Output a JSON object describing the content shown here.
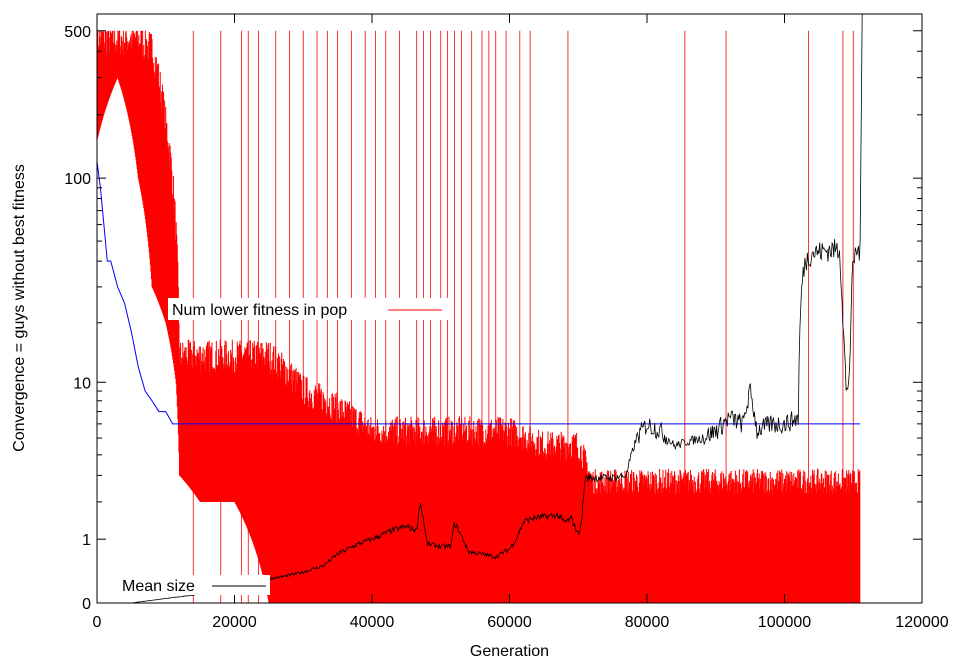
{
  "chart_data": {
    "type": "line",
    "xlabel": "Generation",
    "ylabel": "Convergence = guys without best fitness",
    "xlim": [
      0,
      120000
    ],
    "x_ticks": [
      0,
      20000,
      40000,
      60000,
      80000,
      100000,
      120000
    ],
    "x_tick_labels": [
      "0",
      "20000",
      "40000",
      "60000",
      "80000",
      "100000",
      "120000"
    ],
    "y_scale": "log(1+y)",
    "y_ticks": [
      0,
      1,
      10,
      100,
      500
    ],
    "y_tick_labels": [
      "0",
      "1",
      "10",
      "100",
      "500"
    ],
    "ylim": [
      0,
      600
    ],
    "grid": false,
    "legend_placement": "inside, over the plot",
    "series": [
      {
        "name": "Num lower fitness in pop",
        "color": "#ff0000",
        "style": "dense impulses",
        "x": [
          0,
          3000,
          6000,
          8000,
          10000,
          11500,
          12000,
          15000,
          18000,
          20000,
          25000,
          30000,
          35000,
          40000,
          45000,
          50000,
          55000,
          60000,
          65000,
          70000,
          72000,
          80000,
          90000,
          100000,
          110000,
          111000
        ],
        "upper": [
          500,
          500,
          500,
          450,
          200,
          60,
          15,
          15,
          15,
          15,
          15,
          10,
          8,
          6,
          6,
          6,
          6,
          6,
          5,
          5,
          3,
          3,
          3,
          3,
          3,
          3
        ],
        "lower": [
          150,
          300,
          100,
          30,
          20,
          10,
          3,
          2,
          2,
          2,
          0,
          0,
          0,
          0,
          0,
          0,
          0,
          0,
          0,
          0,
          0,
          0,
          0,
          0,
          0,
          0
        ],
        "spikes": [
          {
            "x": 14000,
            "y": 500
          },
          {
            "x": 18000,
            "y": 500
          },
          {
            "x": 21000,
            "y": 500
          },
          {
            "x": 22000,
            "y": 500
          },
          {
            "x": 23500,
            "y": 500
          },
          {
            "x": 26000,
            "y": 500
          },
          {
            "x": 28000,
            "y": 500
          },
          {
            "x": 30000,
            "y": 500
          },
          {
            "x": 32000,
            "y": 500
          },
          {
            "x": 33500,
            "y": 500
          },
          {
            "x": 35000,
            "y": 500
          },
          {
            "x": 37000,
            "y": 500
          },
          {
            "x": 39000,
            "y": 500
          },
          {
            "x": 40500,
            "y": 500
          },
          {
            "x": 42000,
            "y": 500
          },
          {
            "x": 44000,
            "y": 500
          },
          {
            "x": 46500,
            "y": 500
          },
          {
            "x": 47500,
            "y": 500
          },
          {
            "x": 48500,
            "y": 500
          },
          {
            "x": 50000,
            "y": 500
          },
          {
            "x": 51000,
            "y": 500
          },
          {
            "x": 52000,
            "y": 500
          },
          {
            "x": 53000,
            "y": 500
          },
          {
            "x": 54500,
            "y": 500
          },
          {
            "x": 56000,
            "y": 500
          },
          {
            "x": 57000,
            "y": 500
          },
          {
            "x": 58000,
            "y": 500
          },
          {
            "x": 59500,
            "y": 500
          },
          {
            "x": 61500,
            "y": 500
          },
          {
            "x": 63000,
            "y": 500
          },
          {
            "x": 68500,
            "y": 500
          },
          {
            "x": 85500,
            "y": 500
          },
          {
            "x": 91500,
            "y": 500
          },
          {
            "x": 103500,
            "y": 500
          },
          {
            "x": 108500,
            "y": 500
          },
          {
            "x": 110000,
            "y": 500
          }
        ]
      },
      {
        "name": "",
        "color": "#0000ff",
        "x": [
          0,
          500,
          1000,
          1500,
          2000,
          3000,
          4000,
          5000,
          6000,
          7000,
          8000,
          9000,
          10000,
          11000,
          12000,
          111000
        ],
        "y": [
          120,
          90,
          60,
          40,
          40,
          30,
          25,
          18,
          12,
          9,
          8,
          7,
          7,
          6,
          6,
          6
        ]
      },
      {
        "name": "Mean size",
        "color": "#000000",
        "x": [
          0,
          5000,
          10000,
          15000,
          20000,
          23000,
          25000,
          28000,
          30000,
          33000,
          35000,
          38000,
          40000,
          43000,
          45000,
          46500,
          47000,
          48000,
          50000,
          51500,
          52000,
          54000,
          56000,
          58000,
          60000,
          61000,
          62000,
          63000,
          65000,
          67000,
          68000,
          69000,
          70000,
          70500,
          71000,
          73000,
          75000,
          77000,
          78500,
          80000,
          82000,
          84000,
          86000,
          88000,
          90000,
          92000,
          94000,
          95000,
          96000,
          98000,
          100000,
          102000,
          102500,
          103000,
          104000,
          106000,
          108000,
          108500,
          109000,
          109500,
          110000,
          110500,
          111000,
          111300
        ],
        "y": [
          0,
          0,
          0.05,
          0.1,
          0.12,
          0.2,
          0.3,
          0.35,
          0.4,
          0.5,
          0.7,
          0.9,
          1.0,
          1.2,
          1.3,
          1.2,
          2.0,
          0.9,
          0.85,
          0.85,
          1.4,
          0.75,
          0.7,
          0.65,
          0.8,
          1.0,
          1.4,
          1.5,
          1.55,
          1.6,
          1.4,
          1.5,
          1.1,
          1.4,
          2.9,
          2.9,
          2.9,
          3.0,
          5.0,
          6.0,
          5.5,
          4.5,
          4.8,
          5.0,
          5.5,
          6.5,
          6.0,
          9.0,
          5.5,
          6.0,
          6.0,
          6.5,
          30,
          40,
          44,
          45,
          46,
          20,
          8,
          12,
          40,
          45,
          45,
          600
        ]
      }
    ]
  }
}
